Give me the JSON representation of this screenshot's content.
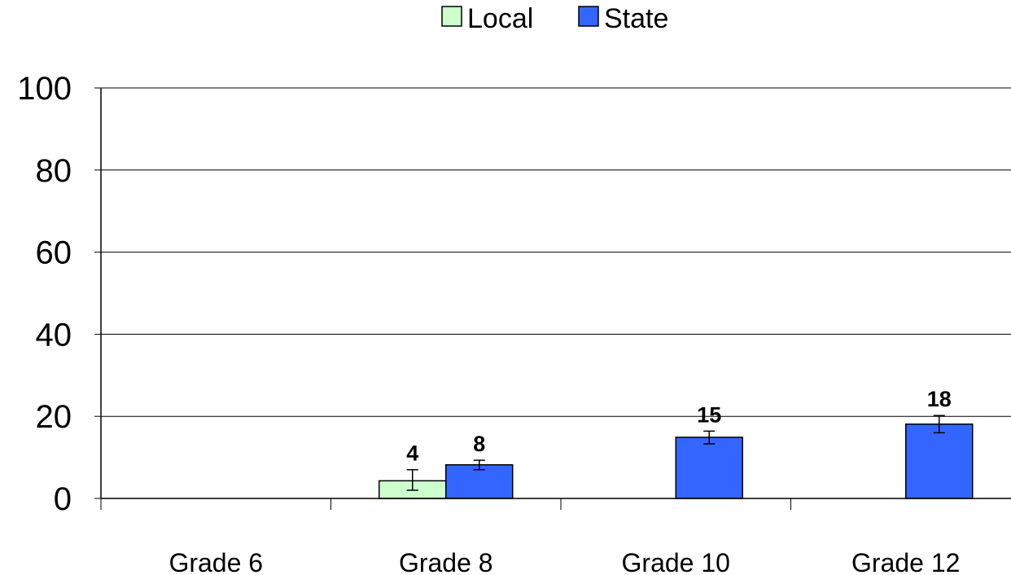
{
  "chart_data": {
    "type": "bar",
    "title": "",
    "xlabel": "",
    "ylabel": "",
    "ylim": [
      0,
      100
    ],
    "yticks": [
      "0",
      "20",
      "40",
      "60",
      "80",
      "100"
    ],
    "grid": true,
    "legend_position": "top-center",
    "categories": [
      "Grade 6",
      "Grade 8",
      "Grade 10",
      "Grade 12"
    ],
    "series": [
      {
        "name": "Local",
        "color": "#ccffcc",
        "values": [
          null,
          4.3,
          null,
          null
        ],
        "labels": [
          null,
          "4",
          null,
          null
        ],
        "error": [
          null,
          [
            2,
            7
          ],
          null,
          null
        ]
      },
      {
        "name": "State",
        "color": "#3366ff",
        "values": [
          null,
          8.2,
          14.9,
          18.1
        ],
        "labels": [
          null,
          "8",
          "15",
          "18"
        ],
        "error": [
          null,
          [
            7,
            9.3
          ],
          [
            13.3,
            16.4
          ],
          [
            16,
            20.2
          ]
        ]
      }
    ]
  }
}
